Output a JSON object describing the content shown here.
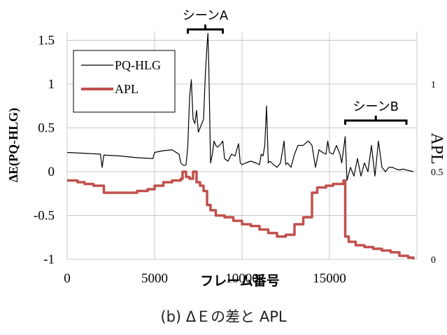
{
  "caption": "(b) ΔＥの差と APL",
  "chart_data": {
    "type": "line",
    "xlabel": "フレーム番号",
    "ylabel_left": "ΔE(PQ-HLG)",
    "ylabel_right": "APL",
    "xlim": [
      0,
      20000
    ],
    "ylim_left": [
      -1,
      1.6
    ],
    "ylim_right": [
      0,
      1.3
    ],
    "x_ticks": [
      "0",
      "5000",
      "10000",
      "15000"
    ],
    "y_ticks_left": [
      "1.5",
      "1",
      "0.5",
      "0",
      "-0.5",
      "-1"
    ],
    "y_ticks_right": [
      "1",
      "0.5",
      "0"
    ],
    "grid": true,
    "legend_position": "top-left",
    "annotations": [
      {
        "label": "シーンA",
        "x_start": 6900,
        "x_end": 8900
      },
      {
        "label": "シーンB",
        "x_start": 15900,
        "x_end": 19400
      }
    ],
    "series": [
      {
        "name": "PQ-HLG",
        "axis": "left",
        "color": "#000000",
        "x": [
          0,
          1000,
          1900,
          2000,
          2100,
          3000,
          4000,
          4900,
          5000,
          5500,
          6000,
          6400,
          6500,
          6600,
          6700,
          6800,
          6900,
          7000,
          7100,
          7200,
          7300,
          7400,
          7500,
          7600,
          7700,
          7800,
          7900,
          8000,
          8050,
          8100,
          8200,
          8300,
          8400,
          8500,
          8600,
          8700,
          8800,
          8900,
          9000,
          9200,
          9400,
          9600,
          9700,
          9800,
          9900,
          10000,
          10200,
          10500,
          10800,
          11000,
          11100,
          11200,
          11300,
          11400,
          11500,
          11600,
          11800,
          12000,
          12200,
          12400,
          12500,
          12600,
          12800,
          13000,
          13200,
          13400,
          13500,
          13600,
          13800,
          14000,
          14200,
          14400,
          14600,
          14800,
          14900,
          15000,
          15200,
          15300,
          15400,
          15500,
          15600,
          15700,
          15800,
          15900,
          16000,
          16200,
          16400,
          16600,
          16800,
          17000,
          17200,
          17400,
          17600,
          17800,
          18000,
          18200,
          18400,
          18600,
          18800,
          19000,
          19200,
          19400,
          19600,
          19800
        ],
        "values": [
          0.22,
          0.21,
          0.2,
          0.05,
          0.19,
          0.18,
          0.16,
          0.15,
          0.22,
          0.24,
          0.25,
          0.2,
          0.1,
          0.08,
          0.07,
          0.08,
          0.3,
          0.85,
          1.05,
          0.6,
          0.55,
          0.7,
          0.45,
          0.5,
          0.55,
          0.6,
          1.1,
          1.45,
          1.58,
          1.2,
          0.1,
          0.2,
          0.35,
          0.3,
          0.28,
          0.3,
          0.32,
          0.35,
          0.15,
          0.12,
          0.2,
          0.18,
          0.25,
          0.32,
          0.1,
          0.08,
          0.1,
          0.12,
          0.1,
          0.08,
          0.2,
          0.18,
          0.3,
          0.75,
          0.1,
          0.12,
          0.08,
          0.05,
          0.1,
          0.35,
          0.08,
          0.1,
          0.05,
          0.2,
          0.3,
          0.3,
          0.3,
          0.32,
          0.35,
          0.3,
          0.05,
          0.25,
          0.22,
          0.2,
          0.35,
          0.22,
          0.2,
          0.25,
          0.3,
          0.25,
          0.2,
          0.1,
          0.25,
          0.4,
          -0.1,
          0.05,
          -0.05,
          0.15,
          -0.05,
          0.1,
          0.0,
          0.3,
          -0.05,
          0.35,
          0.05,
          0.0,
          0.05,
          0.05,
          0.03,
          0.02,
          0.03,
          0.02,
          0.01,
          0.0
        ]
      },
      {
        "name": "APL",
        "axis": "right",
        "color": "#c0504d",
        "x": [
          0,
          300,
          600,
          1000,
          1500,
          2000,
          2100,
          3000,
          4000,
          4600,
          5000,
          5500,
          6000,
          6500,
          6600,
          6700,
          6800,
          7000,
          7200,
          7400,
          7600,
          7800,
          8000,
          8200,
          8500,
          9000,
          9500,
          10000,
          10500,
          11000,
          11500,
          12000,
          12500,
          13000,
          13500,
          14000,
          14300,
          14800,
          15200,
          15500,
          15800,
          15900,
          16100,
          16500,
          17000,
          17500,
          18000,
          18500,
          19000,
          19500,
          19800
        ],
        "values": [
          0.45,
          0.45,
          0.44,
          0.43,
          0.42,
          0.42,
          0.38,
          0.38,
          0.39,
          0.4,
          0.42,
          0.44,
          0.45,
          0.46,
          0.5,
          0.5,
          0.47,
          0.46,
          0.5,
          0.44,
          0.42,
          0.39,
          0.31,
          0.28,
          0.25,
          0.24,
          0.22,
          0.2,
          0.19,
          0.17,
          0.15,
          0.13,
          0.14,
          0.2,
          0.24,
          0.38,
          0.41,
          0.42,
          0.43,
          0.43,
          0.45,
          0.13,
          0.1,
          0.08,
          0.07,
          0.06,
          0.05,
          0.04,
          0.02,
          0.01,
          0.0
        ]
      }
    ]
  }
}
